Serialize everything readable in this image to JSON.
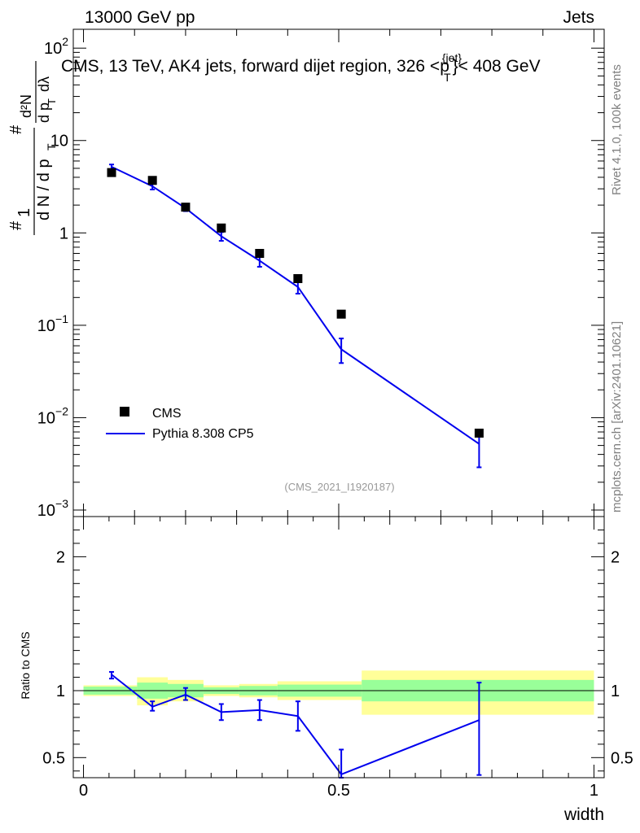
{
  "header": {
    "left": "13000 GeV pp",
    "right": "Jets"
  },
  "side_labels": {
    "rivet": "Rivet 4.1.0,  100k events",
    "mcplots": "mcplots.cern.ch [arXiv:2401.10621]"
  },
  "watermark": "(CMS_2021_I1920187)",
  "chart_data": [
    {
      "type": "scatter",
      "title": "CMS, 13 TeV, AK4 jets, forward dijet region, 326 <p_T^{jet}< 408 GeV",
      "title_parts": {
        "main": "CMS, 13 TeV, AK4 jets, forward dijet region, 326 <p",
        "sup": "{jet}",
        "sub": "T",
        "tail": "}< 408 GeV"
      },
      "ylabel": "#  1/(d N / d p_T #)  d²N/(d p_T d λ)",
      "ylabel_parts": {
        "hash": "#",
        "one": "1",
        "denominator": "d N / d p",
        "sub": "T",
        "hash2": "#",
        "num2": "d²N",
        "den2": "d p",
        "den2_sub": "T",
        "den2_tail": "dλ"
      },
      "yscale": "log",
      "ylim": [
        0.00085,
        160
      ],
      "xlim": [
        -0.02,
        1.02
      ],
      "ytick_labels": [
        {
          "value": 0.001,
          "base": "10",
          "exp": "−3"
        },
        {
          "value": 0.01,
          "base": "10",
          "exp": "−2"
        },
        {
          "value": 0.1,
          "base": "10",
          "exp": "−1"
        },
        {
          "value": 1,
          "base": "1",
          "exp": ""
        },
        {
          "value": 10,
          "base": "10",
          "exp": ""
        },
        {
          "value": 100,
          "base": "10",
          "exp": "2"
        }
      ],
      "legend": {
        "position": "bottom-left",
        "entries": [
          "CMS",
          "Pythia 8.308 CP5"
        ]
      },
      "series": [
        {
          "name": "CMS",
          "style": "markers",
          "color": "#000000",
          "x": [
            0.055,
            0.135,
            0.2,
            0.27,
            0.345,
            0.42,
            0.505,
            0.775
          ],
          "y": [
            4.5,
            3.7,
            1.9,
            1.13,
            0.6,
            0.32,
            0.132,
            0.0068
          ]
        },
        {
          "name": "Pythia 8.308 CP5",
          "style": "line",
          "color": "#0000ee",
          "x": [
            0.055,
            0.135,
            0.2,
            0.27,
            0.345,
            0.42,
            0.505,
            0.775
          ],
          "y": [
            5.2,
            3.2,
            1.85,
            0.92,
            0.5,
            0.26,
            0.055,
            0.0052
          ],
          "err_low": [
            4.9,
            2.95,
            1.72,
            0.82,
            0.43,
            0.22,
            0.039,
            0.0029
          ],
          "err_high": [
            5.5,
            3.45,
            1.98,
            1.02,
            0.57,
            0.3,
            0.072,
            0.0072
          ]
        }
      ]
    },
    {
      "type": "line",
      "ylabel": "Ratio to CMS",
      "xlabel": "width",
      "ylim": [
        0.35,
        2.3
      ],
      "xlim": [
        -0.02,
        1.02
      ],
      "x_ticks": [
        {
          "value": 0,
          "label": "0"
        },
        {
          "value": 0.5,
          "label": "0.5"
        },
        {
          "value": 1,
          "label": "1"
        }
      ],
      "y_ticks": [
        {
          "value": 0.5,
          "label": "0.5"
        },
        {
          "value": 1,
          "label": "1"
        },
        {
          "value": 2,
          "label": "2"
        }
      ],
      "bands": [
        {
          "x0": 0.0,
          "x1": 0.105,
          "yellow": [
            0.96,
            1.04
          ],
          "green": [
            0.97,
            1.03
          ]
        },
        {
          "x0": 0.105,
          "x1": 0.165,
          "yellow": [
            0.89,
            1.1
          ],
          "green": [
            0.94,
            1.06
          ]
        },
        {
          "x0": 0.165,
          "x1": 0.235,
          "yellow": [
            0.92,
            1.08
          ],
          "green": [
            0.95,
            1.05
          ]
        },
        {
          "x0": 0.235,
          "x1": 0.305,
          "yellow": [
            0.96,
            1.04
          ],
          "green": [
            0.975,
            1.025
          ]
        },
        {
          "x0": 0.305,
          "x1": 0.38,
          "yellow": [
            0.95,
            1.05
          ],
          "green": [
            0.965,
            1.035
          ]
        },
        {
          "x0": 0.38,
          "x1": 0.545,
          "yellow": [
            0.93,
            1.07
          ],
          "green": [
            0.955,
            1.045
          ]
        },
        {
          "x0": 0.545,
          "x1": 1.0,
          "yellow": [
            0.82,
            1.15
          ],
          "green": [
            0.92,
            1.08
          ]
        }
      ],
      "series": [
        {
          "name": "Pythia 8.308 CP5",
          "color": "#0000ee",
          "x": [
            0.055,
            0.135,
            0.2,
            0.27,
            0.345,
            0.42,
            0.505,
            0.775
          ],
          "y": [
            1.12,
            0.88,
            0.97,
            0.84,
            0.855,
            0.81,
            0.375,
            0.78
          ],
          "err_low": [
            1.09,
            0.85,
            0.93,
            0.78,
            0.78,
            0.7,
            0.35,
            0.37
          ],
          "err_high": [
            1.14,
            0.92,
            1.02,
            0.9,
            0.93,
            0.92,
            0.56,
            1.06
          ]
        }
      ]
    }
  ]
}
